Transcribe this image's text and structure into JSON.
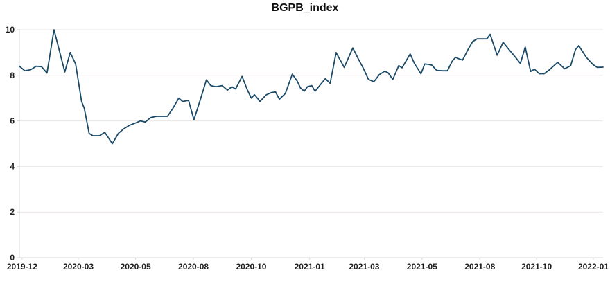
{
  "chart_data": {
    "type": "line",
    "title": "BGPB_index",
    "xlabel": "",
    "ylabel": "",
    "x_unit": "weeks since 2019-12",
    "xlim": [
      0,
      108
    ],
    "ylim": [
      0,
      10
    ],
    "grid": "horizontal",
    "legend": "none",
    "colors": {
      "line": "#1b4a68",
      "grid": "#ebe6e6",
      "spine": "#d8d8d8",
      "text": "#1f1f1f"
    },
    "y_ticks": [
      0,
      2,
      4,
      6,
      8,
      10
    ],
    "x_ticks": [
      {
        "pos": 0.5,
        "label": "2019-12"
      },
      {
        "pos": 10.9,
        "label": "2020-03"
      },
      {
        "pos": 21.5,
        "label": "2020-05"
      },
      {
        "pos": 32.2,
        "label": "2020-08"
      },
      {
        "pos": 42.9,
        "label": "2020-10"
      },
      {
        "pos": 53.7,
        "label": "2021-01"
      },
      {
        "pos": 63.8,
        "label": "2021-03"
      },
      {
        "pos": 74.5,
        "label": "2021-05"
      },
      {
        "pos": 85.2,
        "label": "2021-08"
      },
      {
        "pos": 95.7,
        "label": "2021-10"
      },
      {
        "pos": 106.2,
        "label": "2022-01"
      }
    ],
    "points": [
      [
        0,
        8.4
      ],
      [
        1,
        8.2
      ],
      [
        2.1,
        8.25
      ],
      [
        3.1,
        8.4
      ],
      [
        4.1,
        8.38
      ],
      [
        5.1,
        8.1
      ],
      [
        6.4,
        10.0
      ],
      [
        8.4,
        8.15
      ],
      [
        9.4,
        9.0
      ],
      [
        10.4,
        8.5
      ],
      [
        11.5,
        6.85
      ],
      [
        12,
        6.55
      ],
      [
        12.9,
        5.45
      ],
      [
        13.6,
        5.35
      ],
      [
        14.8,
        5.35
      ],
      [
        15.8,
        5.5
      ],
      [
        17.2,
        5.0
      ],
      [
        18.3,
        5.45
      ],
      [
        19.3,
        5.65
      ],
      [
        20.3,
        5.8
      ],
      [
        21.4,
        5.9
      ],
      [
        22.4,
        6.0
      ],
      [
        23.3,
        5.95
      ],
      [
        24.3,
        6.15
      ],
      [
        25.4,
        6.2
      ],
      [
        26.4,
        6.2
      ],
      [
        27.4,
        6.2
      ],
      [
        28.4,
        6.55
      ],
      [
        29.5,
        7.0
      ],
      [
        30.2,
        6.85
      ],
      [
        31.3,
        6.9
      ],
      [
        32.3,
        6.05
      ],
      [
        33.5,
        6.95
      ],
      [
        34.6,
        7.8
      ],
      [
        35.4,
        7.55
      ],
      [
        36.4,
        7.5
      ],
      [
        37.5,
        7.55
      ],
      [
        38.5,
        7.35
      ],
      [
        39.3,
        7.5
      ],
      [
        40,
        7.4
      ],
      [
        41.2,
        7.95
      ],
      [
        42.2,
        7.35
      ],
      [
        42.9,
        7.0
      ],
      [
        43.5,
        7.15
      ],
      [
        44.2,
        6.95
      ],
      [
        44.5,
        6.85
      ],
      [
        45.7,
        7.15
      ],
      [
        46.7,
        7.25
      ],
      [
        47.4,
        7.27
      ],
      [
        48.1,
        6.95
      ],
      [
        49.2,
        7.2
      ],
      [
        50.5,
        8.05
      ],
      [
        51.4,
        7.75
      ],
      [
        52,
        7.45
      ],
      [
        52.7,
        7.3
      ],
      [
        53.3,
        7.5
      ],
      [
        54.1,
        7.55
      ],
      [
        54.7,
        7.3
      ],
      [
        55.9,
        7.65
      ],
      [
        56.6,
        7.85
      ],
      [
        57.5,
        7.65
      ],
      [
        58.6,
        9.0
      ],
      [
        60.1,
        8.35
      ],
      [
        61.7,
        9.2
      ],
      [
        62.7,
        8.73
      ],
      [
        63.6,
        8.33
      ],
      [
        64.6,
        7.82
      ],
      [
        65.6,
        7.72
      ],
      [
        66.6,
        8.03
      ],
      [
        67.6,
        8.18
      ],
      [
        68.2,
        8.12
      ],
      [
        69.1,
        7.82
      ],
      [
        70.2,
        8.43
      ],
      [
        70.8,
        8.33
      ],
      [
        72.3,
        8.94
      ],
      [
        73.1,
        8.52
      ],
      [
        74.3,
        8.07
      ],
      [
        75,
        8.5
      ],
      [
        75.7,
        8.48
      ],
      [
        76.3,
        8.45
      ],
      [
        77.2,
        8.22
      ],
      [
        78.3,
        8.2
      ],
      [
        79.2,
        8.2
      ],
      [
        80.1,
        8.63
      ],
      [
        80.7,
        8.79
      ],
      [
        81.3,
        8.73
      ],
      [
        82,
        8.67
      ],
      [
        83,
        9.13
      ],
      [
        83.9,
        9.49
      ],
      [
        84.7,
        9.6
      ],
      [
        86.5,
        9.6
      ],
      [
        87.1,
        9.8
      ],
      [
        88.4,
        8.88
      ],
      [
        89.5,
        9.45
      ],
      [
        90.6,
        9.13
      ],
      [
        91.7,
        8.82
      ],
      [
        92.7,
        8.52
      ],
      [
        93.6,
        9.24
      ],
      [
        94.6,
        8.17
      ],
      [
        95.3,
        8.27
      ],
      [
        96.2,
        8.07
      ],
      [
        97.1,
        8.07
      ],
      [
        98.1,
        8.25
      ],
      [
        99.6,
        8.57
      ],
      [
        100.9,
        8.29
      ],
      [
        102,
        8.42
      ],
      [
        102.9,
        9.13
      ],
      [
        103.5,
        9.3
      ],
      [
        104.9,
        8.79
      ],
      [
        106.1,
        8.48
      ],
      [
        106.9,
        8.35
      ],
      [
        108,
        8.36
      ]
    ]
  }
}
